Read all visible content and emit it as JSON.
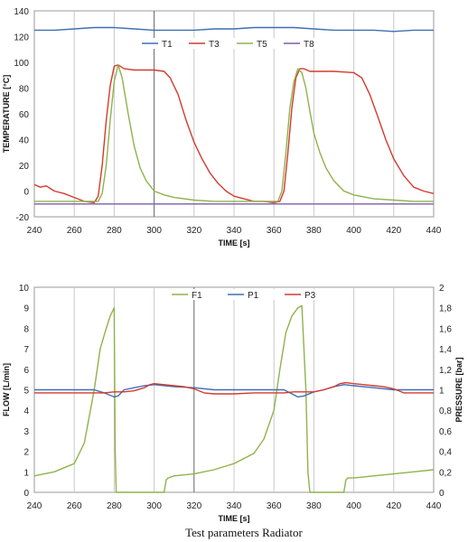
{
  "caption": "Test parameters Radiator",
  "chart_data": [
    {
      "type": "line",
      "xlabel": "TIME [s]",
      "ylabel": "TEMPERATURE [°C]",
      "xlim": [
        240,
        440
      ],
      "ylim": [
        -20,
        140
      ],
      "xticks": [
        "240",
        "260",
        "280",
        "300",
        "320",
        "340",
        "360",
        "380",
        "400",
        "420",
        "440"
      ],
      "yticks": [
        "-20",
        "0",
        "20",
        "40",
        "60",
        "80",
        "100",
        "120",
        "140"
      ],
      "grid": "vertical",
      "legend_position": "top",
      "series": [
        {
          "name": "T1",
          "color": "#3f6fb5",
          "x": [
            240,
            250,
            260,
            270,
            280,
            290,
            300,
            310,
            320,
            330,
            340,
            350,
            360,
            370,
            380,
            390,
            400,
            410,
            420,
            430,
            440
          ],
          "y": [
            125,
            125,
            126,
            127,
            127,
            126,
            125,
            125,
            125,
            126,
            126,
            127,
            127,
            127,
            126,
            125,
            125,
            125,
            124,
            125,
            125
          ]
        },
        {
          "name": "T3",
          "color": "#d43a2f",
          "x": [
            240,
            243,
            246,
            250,
            255,
            260,
            265,
            270,
            272,
            274,
            276,
            278,
            280,
            282,
            285,
            290,
            300,
            305,
            308,
            312,
            316,
            320,
            324,
            328,
            332,
            336,
            340,
            345,
            350,
            355,
            360,
            363,
            365,
            367,
            369,
            371,
            373,
            375,
            378,
            382,
            390,
            400,
            404,
            408,
            412,
            416,
            420,
            425,
            430,
            435,
            440
          ],
          "y": [
            5,
            3,
            4,
            0,
            -2,
            -5,
            -8,
            -9,
            -4,
            20,
            55,
            82,
            97,
            98,
            95,
            94,
            94,
            93,
            88,
            75,
            55,
            38,
            25,
            14,
            6,
            0,
            -4,
            -6,
            -8,
            -8,
            -9,
            -8,
            0,
            30,
            65,
            88,
            95,
            95,
            93,
            93,
            93,
            92,
            88,
            75,
            58,
            40,
            25,
            12,
            3,
            0,
            -2
          ]
        },
        {
          "name": "T5",
          "color": "#8fb34a",
          "x": [
            240,
            260,
            270,
            272,
            274,
            276,
            278,
            280,
            282,
            284,
            287,
            290,
            293,
            296,
            300,
            305,
            310,
            320,
            330,
            340,
            350,
            360,
            362,
            364,
            366,
            368,
            370,
            372,
            374,
            376,
            378,
            380,
            383,
            386,
            390,
            395,
            400,
            410,
            420,
            430,
            440
          ],
          "y": [
            -8,
            -8,
            -8,
            -8,
            -2,
            20,
            55,
            85,
            98,
            88,
            60,
            35,
            18,
            8,
            0,
            -3,
            -5,
            -7,
            -8,
            -8,
            -8,
            -8,
            -8,
            0,
            30,
            65,
            85,
            95,
            92,
            80,
            62,
            45,
            30,
            18,
            8,
            0,
            -3,
            -6,
            -7,
            -8,
            -8
          ]
        },
        {
          "name": "T8",
          "color": "#7a5ea8",
          "x": [
            240,
            440
          ],
          "y": [
            -10,
            -10
          ]
        }
      ]
    },
    {
      "type": "line",
      "xlabel": "TIME [s]",
      "ylabel": "FLOW [L/min]",
      "y2label": "PRESSURE [bar]",
      "xlim": [
        240,
        440
      ],
      "ylim": [
        0,
        10
      ],
      "y2lim": [
        0,
        2
      ],
      "xticks": [
        "240",
        "260",
        "280",
        "300",
        "320",
        "340",
        "360",
        "380",
        "400",
        "420",
        "440"
      ],
      "yticks": [
        "0",
        "1",
        "2",
        "3",
        "4",
        "5",
        "6",
        "7",
        "8",
        "9",
        "10"
      ],
      "y2ticks": [
        "0",
        "0,2",
        "0,4",
        "0,6",
        "0,8",
        "1",
        "1,2",
        "1,4",
        "1,6",
        "1,8",
        "2"
      ],
      "grid": "vertical",
      "legend_position": "top",
      "series": [
        {
          "name": "F1",
          "axis": "left",
          "color": "#8fb34a",
          "x": [
            240,
            250,
            260,
            265,
            270,
            273,
            276,
            278,
            280,
            280.5,
            281,
            285,
            290,
            300,
            305,
            306,
            307,
            310,
            320,
            330,
            340,
            350,
            355,
            360,
            363,
            366,
            369,
            372,
            374,
            376,
            377,
            378,
            380,
            390,
            395,
            396,
            397,
            400,
            410,
            420,
            430,
            440
          ],
          "y": [
            0.8,
            1.0,
            1.4,
            2.4,
            5.0,
            7.0,
            8.0,
            8.6,
            9.0,
            2.0,
            0,
            0,
            0,
            0,
            0,
            0.6,
            0.7,
            0.8,
            0.9,
            1.1,
            1.4,
            1.9,
            2.6,
            4.0,
            6.0,
            7.8,
            8.6,
            9.0,
            9.1,
            5.0,
            1.0,
            0,
            0,
            0,
            0,
            0.6,
            0.7,
            0.7,
            0.8,
            0.9,
            1.0,
            1.1
          ]
        },
        {
          "name": "P1",
          "axis": "right",
          "color": "#3f6fb5",
          "x": [
            240,
            260,
            270,
            275,
            280,
            282,
            285,
            290,
            295,
            300,
            310,
            320,
            330,
            340,
            350,
            360,
            365,
            368,
            372,
            375,
            380,
            385,
            390,
            395,
            400,
            410,
            420,
            430,
            440
          ],
          "y": [
            1.0,
            1.0,
            1.0,
            0.97,
            0.93,
            0.94,
            1.0,
            1.02,
            1.04,
            1.05,
            1.03,
            1.02,
            1.0,
            1.0,
            1.0,
            1.0,
            1.0,
            0.97,
            0.93,
            0.94,
            0.98,
            1.0,
            1.03,
            1.05,
            1.04,
            1.02,
            1.0,
            1.0,
            1.0
          ]
        },
        {
          "name": "P3",
          "axis": "right",
          "color": "#d43a2f",
          "x": [
            240,
            260,
            275,
            280,
            285,
            290,
            295,
            298,
            300,
            305,
            310,
            315,
            320,
            325,
            330,
            335,
            340,
            350,
            360,
            365,
            370,
            375,
            380,
            385,
            390,
            393,
            396,
            400,
            405,
            410,
            415,
            420,
            425,
            430,
            440
          ],
          "y": [
            0.97,
            0.97,
            0.97,
            0.98,
            0.98,
            0.99,
            1.02,
            1.05,
            1.06,
            1.05,
            1.04,
            1.03,
            1.01,
            0.97,
            0.96,
            0.96,
            0.96,
            0.97,
            0.97,
            0.97,
            0.98,
            0.98,
            0.98,
            1.0,
            1.03,
            1.06,
            1.07,
            1.06,
            1.05,
            1.04,
            1.03,
            1.01,
            0.97,
            0.97,
            0.97
          ]
        }
      ]
    }
  ]
}
